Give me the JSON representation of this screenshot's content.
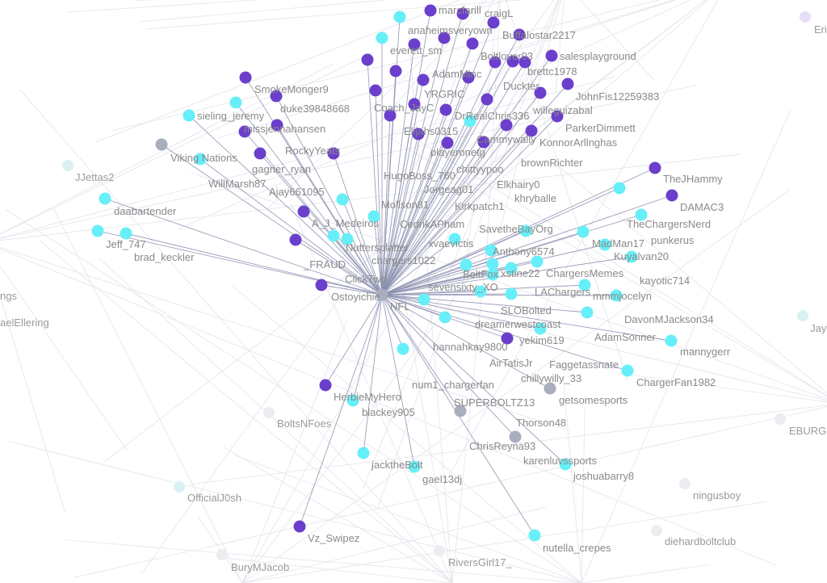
{
  "colors": {
    "purple": "#6b3fcc",
    "cyan": "#66eff8",
    "gray": "#a9aebd",
    "faded": "#ececf1",
    "faded-cyan": "#d9f1f3",
    "faded-purple": "#e6ddf6",
    "edge": "#8b8fb0",
    "edge_faint": "#e3e4ec"
  },
  "hub": {
    "label": "NFL",
    "group": "gray"
  },
  "nodes": [
    {
      "label": "anaheimsveryown",
      "group": "purple"
    },
    {
      "label": "marcfarill",
      "group": "purple"
    },
    {
      "label": "craigL",
      "group": "purple"
    },
    {
      "label": "Buffalostar2217",
      "group": "purple"
    },
    {
      "label": "",
      "group": "cyan"
    },
    {
      "label": "",
      "group": "cyan"
    },
    {
      "label": "everett_sm",
      "group": "purple"
    },
    {
      "label": "AdamMinc",
      "group": "purple"
    },
    {
      "label": "YRGRIC",
      "group": "purple"
    },
    {
      "label": "Boltlover03",
      "group": "purple"
    },
    {
      "label": "brettc1978",
      "group": "purple"
    },
    {
      "label": "Coach_JayC",
      "group": "purple"
    },
    {
      "label": "Elijahs0315",
      "group": "purple"
    },
    {
      "label": "DrRealChris336",
      "group": "purple"
    },
    {
      "label": "Duckter",
      "group": "purple"
    },
    {
      "label": "willeguizabal",
      "group": "purple"
    },
    {
      "label": "salesplayground",
      "group": "purple"
    },
    {
      "label": "playeronetg",
      "group": "purple"
    },
    {
      "label": "Cammywally",
      "group": "purple"
    },
    {
      "label": "HugoBoss_760",
      "group": "purple"
    },
    {
      "label": "brownRichter",
      "group": "purple"
    },
    {
      "label": "JohnFis12259383",
      "group": "purple"
    },
    {
      "label": "Jorgeag01",
      "group": "purple"
    },
    {
      "label": "Elkhairy0",
      "group": "purple"
    },
    {
      "label": "Kirkpatch1",
      "group": "cyan"
    },
    {
      "label": "CedrikAPham",
      "group": "purple"
    },
    {
      "label": "SavetheBayOrg",
      "group": "purple"
    },
    {
      "label": "ParkerDimmett",
      "group": "purple"
    },
    {
      "label": "khryballe",
      "group": "purple"
    },
    {
      "label": "KonnorArllnghas",
      "group": "purple"
    },
    {
      "label": "xvaevictis",
      "group": "purple"
    },
    {
      "label": "chittyypoo",
      "group": "purple"
    },
    {
      "label": "Anthony6574",
      "group": "purple"
    },
    {
      "label": "SmokeMonger9",
      "group": "purple"
    },
    {
      "label": "duke39848668",
      "group": "purple"
    },
    {
      "label": "missjennahansen",
      "group": "cyan"
    },
    {
      "label": "sieling_jeremy",
      "group": "cyan"
    },
    {
      "label": "RockyYeats",
      "group": "purple"
    },
    {
      "label": "gagner_ryan",
      "group": "purple"
    },
    {
      "label": "Viking Nations",
      "group": "gray"
    },
    {
      "label": "WillMarsh87",
      "group": "cyan"
    },
    {
      "label": "Ajay661095",
      "group": "purple"
    },
    {
      "label": "JJettas2",
      "group": "faded-cyan"
    },
    {
      "label": "daabartender",
      "group": "cyan"
    },
    {
      "label": "Jeff_747",
      "group": "cyan"
    },
    {
      "label": "brad_keckler",
      "group": "cyan"
    },
    {
      "label": "ngs",
      "group": "faded"
    },
    {
      "label": "aelEllering",
      "group": "faded"
    },
    {
      "label": "chargers1022",
      "group": "cyan"
    },
    {
      "label": "Mollson81",
      "group": "cyan"
    },
    {
      "label": "A_J_Medeiros",
      "group": "purple"
    },
    {
      "label": "Nuttersplatter",
      "group": "cyan"
    },
    {
      "label": "_FRAUD",
      "group": "purple"
    },
    {
      "label": "ClickTwo",
      "group": "cyan"
    },
    {
      "label": "Ostoyichie",
      "group": "purple"
    },
    {
      "label": "TheJHammy",
      "group": "purple"
    },
    {
      "label": "DAMAC3",
      "group": "purple"
    },
    {
      "label": "TheChargersNerd",
      "group": "cyan"
    },
    {
      "label": "punkerus",
      "group": "cyan"
    },
    {
      "label": "xstine22",
      "group": "cyan"
    },
    {
      "label": "LAChargers",
      "group": "cyan"
    },
    {
      "label": "MadMan17",
      "group": "cyan"
    },
    {
      "label": "Kuyalvan20",
      "group": "cyan"
    },
    {
      "label": "kayotic714",
      "group": "cyan"
    },
    {
      "label": "BoltFox",
      "group": "cyan"
    },
    {
      "label": "SLOBolted",
      "group": "cyan"
    },
    {
      "label": "dreamerwestcoast",
      "group": "cyan"
    },
    {
      "label": "ChargersMemes",
      "group": "cyan"
    },
    {
      "label": "yekim619",
      "group": "cyan"
    },
    {
      "label": "sevensixty_XO",
      "group": "cyan"
    },
    {
      "label": "mmmjocelyn",
      "group": "cyan"
    },
    {
      "label": "DavonMJackson34",
      "group": "cyan"
    },
    {
      "label": "AirTatisJr",
      "group": "cyan"
    },
    {
      "label": "chillywilly_33",
      "group": "cyan"
    },
    {
      "label": "hannahkay9800",
      "group": "cyan"
    },
    {
      "label": "AdamSonner",
      "group": "cyan"
    },
    {
      "label": "SUPERBOLTZ13",
      "group": "cyan"
    },
    {
      "label": "Faggetassnate",
      "group": "cyan"
    },
    {
      "label": "Thorson48",
      "group": "purple"
    },
    {
      "label": "mannygerr",
      "group": "cyan"
    },
    {
      "label": "num1_chargerfan",
      "group": "cyan"
    },
    {
      "label": "ChargerFan1982",
      "group": "cyan"
    },
    {
      "label": "getsomesports",
      "group": "gray"
    },
    {
      "label": "HerbieMyHero",
      "group": "purple"
    },
    {
      "label": "blackey905",
      "group": "cyan"
    },
    {
      "label": "BoltsNFoes",
      "group": "faded"
    },
    {
      "label": "ChrisReyna93",
      "group": "gray"
    },
    {
      "label": "karenluvssports",
      "group": "gray"
    },
    {
      "label": "jacktheBolt",
      "group": "cyan"
    },
    {
      "label": "gael13dj",
      "group": "cyan"
    },
    {
      "label": "joshuabarry8",
      "group": "cyan"
    },
    {
      "label": "ningusboy",
      "group": "faded"
    },
    {
      "label": "OfficialJ0sh",
      "group": "faded-cyan"
    },
    {
      "label": "Vz_Swipez",
      "group": "purple"
    },
    {
      "label": "nutella_crepes",
      "group": "cyan"
    },
    {
      "label": "diehardboltclub",
      "group": "faded"
    },
    {
      "label": "BuryMJacob",
      "group": "faded"
    },
    {
      "label": "RiversGirl17_",
      "group": "faded"
    },
    {
      "label": "EBURG",
      "group": "faded"
    },
    {
      "label": "Jay",
      "group": "faded-cyan"
    },
    {
      "label": "Eri",
      "group": "faded-purple"
    }
  ]
}
